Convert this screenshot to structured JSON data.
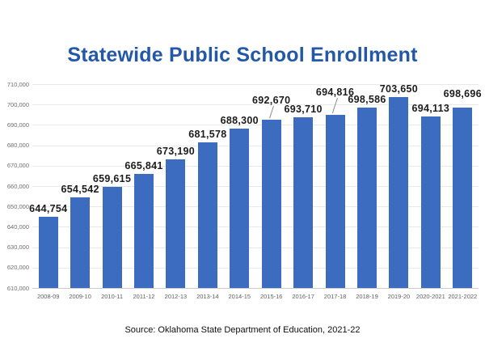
{
  "chart_data": {
    "type": "bar",
    "title": "Statewide Public School Enrollment",
    "categories": [
      "2008-09",
      "2009-10",
      "2010-11",
      "2011-12",
      "2012-13",
      "2013-14",
      "2014-15",
      "2015-16",
      "2016-17",
      "2017-18",
      "2018-19",
      "2019-20",
      "2020-2021",
      "2021-2022"
    ],
    "values": [
      644754,
      654542,
      659615,
      665841,
      673190,
      681578,
      688300,
      692670,
      693710,
      694816,
      698586,
      703650,
      694113,
      698696
    ],
    "value_labels": [
      "644,754",
      "654,542",
      "659,615",
      "665,841",
      "673,190",
      "681,578",
      "688,300",
      "692,670",
      "693,710",
      "694,816",
      "698,586",
      "703,650",
      "694,113",
      "698,696"
    ],
    "xlabel": "",
    "ylabel": "",
    "ylim": [
      610000,
      710000
    ],
    "ytick_step": 10000,
    "ytick_labels": [
      "610,000",
      "620,000",
      "630,000",
      "640,000",
      "650,000",
      "660,000",
      "670,000",
      "680,000",
      "690,000",
      "700,000",
      "710,000"
    ],
    "grid": true,
    "legend": "none",
    "bar_color": "#3c6cc0",
    "title_color": "#2357a7",
    "value_label_color": "#1c1c1c",
    "axis_text_color": "#6e6e6e"
  },
  "footer": {
    "source": "Source: Oklahoma State Department of Education, 2021-22"
  }
}
